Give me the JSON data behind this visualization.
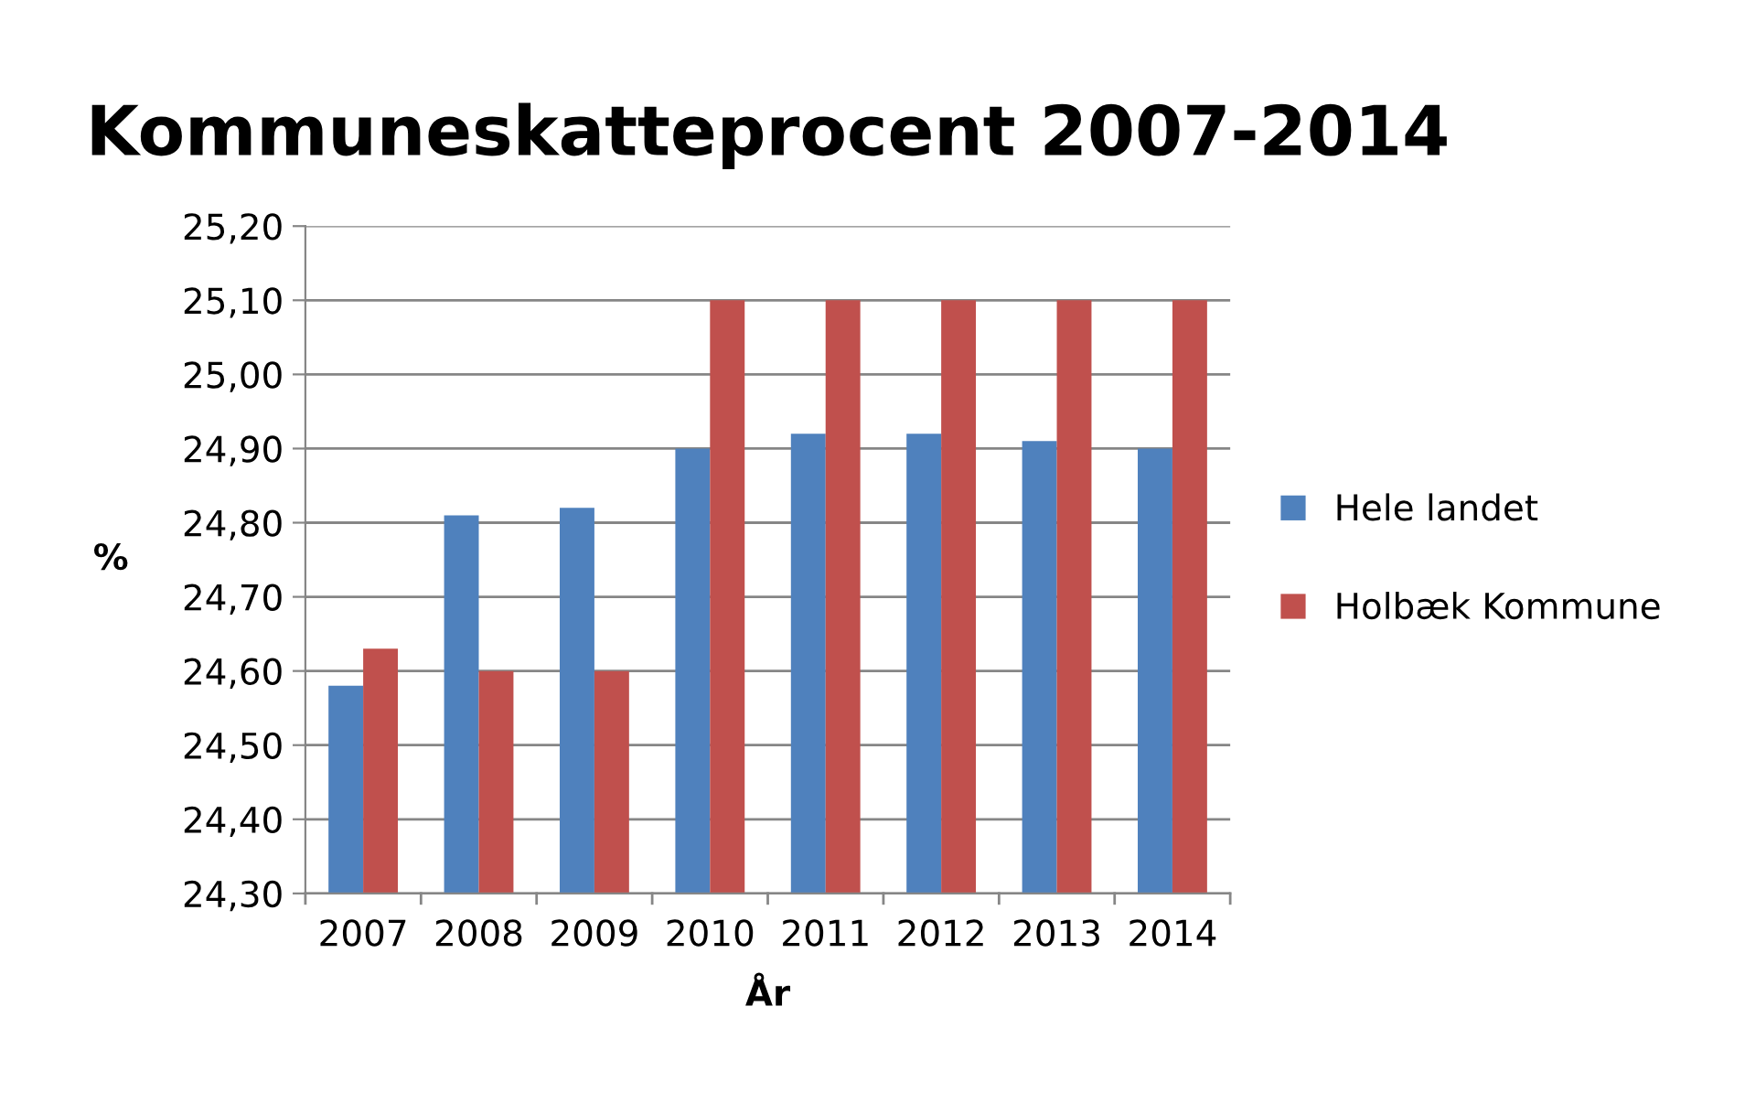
{
  "chart_data": {
    "type": "bar",
    "title": "Kommuneskatteprocent 2007-2014",
    "xlabel": "År",
    "ylabel": "%",
    "categories": [
      "2007",
      "2008",
      "2009",
      "2010",
      "2011",
      "2012",
      "2013",
      "2014"
    ],
    "series": [
      {
        "name": "Hele landet",
        "color": "#4f81bd",
        "values": [
          24.58,
          24.81,
          24.82,
          24.9,
          24.92,
          24.92,
          24.91,
          24.9
        ]
      },
      {
        "name": "Holbæk Kommune",
        "color": "#c0504d",
        "values": [
          24.63,
          24.6,
          24.6,
          25.1,
          25.1,
          25.1,
          25.1,
          25.1
        ]
      }
    ],
    "ylim": [
      24.3,
      25.2
    ],
    "yticks": [
      {
        "value": 24.3,
        "label": "24,30"
      },
      {
        "value": 24.4,
        "label": "24,40"
      },
      {
        "value": 24.5,
        "label": "24,50"
      },
      {
        "value": 24.6,
        "label": "24,60"
      },
      {
        "value": 24.7,
        "label": "24,70"
      },
      {
        "value": 24.8,
        "label": "24,80"
      },
      {
        "value": 24.9,
        "label": "24,90"
      },
      {
        "value": 25.0,
        "label": "25,00"
      },
      {
        "value": 25.1,
        "label": "25,10"
      },
      {
        "value": 25.2,
        "label": "25,20"
      }
    ],
    "grid": "y",
    "legend": "right"
  }
}
